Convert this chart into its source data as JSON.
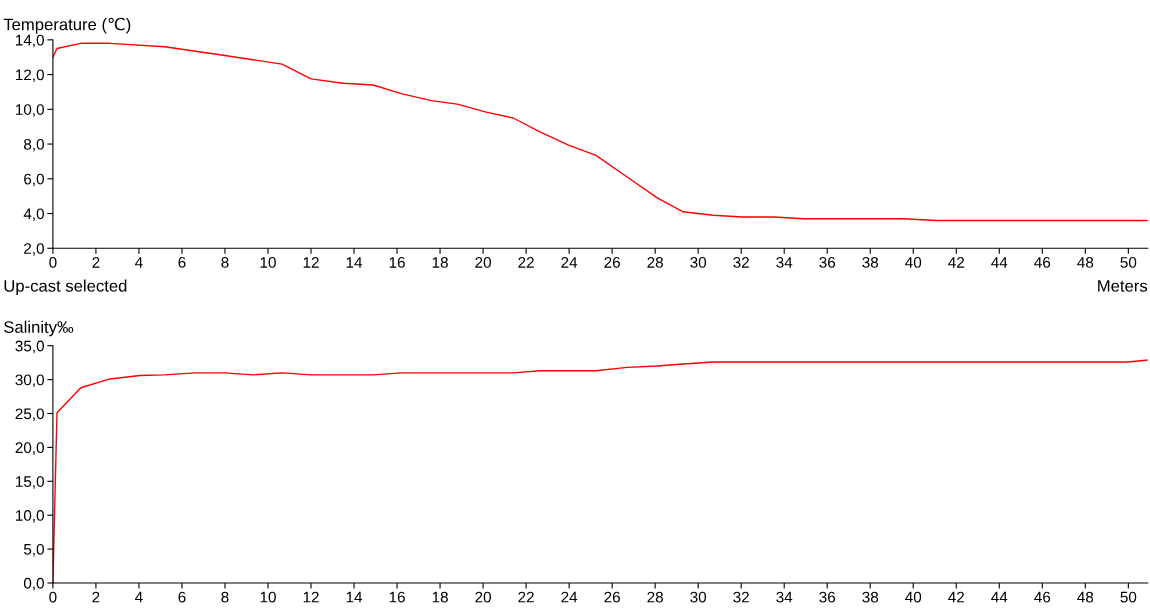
{
  "chart_data": [
    {
      "type": "line",
      "ylabel": "Temperature (℃)",
      "xlabel": "Meters",
      "annotations": [
        "Up-cast selected"
      ],
      "series": [
        {
          "color": "#ff0000",
          "x": [
            0,
            0.19,
            1.3,
            2.65,
            5.2,
            8.0,
            10.65,
            12.0,
            13.5,
            14.9,
            16.2,
            17.6,
            18.8,
            20.1,
            21.4,
            22.65,
            23.95,
            25.25,
            26.7,
            28.1,
            29.3,
            30.7,
            32.05,
            33.5,
            34.9,
            36.2,
            39.5,
            41.1,
            50.9
          ],
          "values": [
            13.0,
            13.5,
            13.8,
            13.8,
            13.6,
            13.1,
            12.6,
            11.75,
            11.5,
            11.4,
            10.9,
            10.5,
            10.3,
            9.85,
            9.5,
            8.7,
            7.95,
            7.35,
            6.1,
            4.9,
            4.1,
            3.9,
            3.8,
            3.8,
            3.7,
            3.7,
            3.7,
            3.6,
            3.6
          ]
        }
      ],
      "xlim": [
        0,
        50.9
      ],
      "ylim": [
        2,
        14
      ],
      "xticks": [
        0,
        2,
        4,
        6,
        8,
        10,
        12,
        14,
        16,
        18,
        20,
        22,
        24,
        26,
        28,
        30,
        32,
        34,
        36,
        38,
        40,
        42,
        44,
        46,
        48,
        50
      ],
      "yticks": [
        {
          "value": 2,
          "label": "2,0"
        },
        {
          "value": 4,
          "label": "4,0"
        },
        {
          "value": 6,
          "label": "6,0"
        },
        {
          "value": 8,
          "label": "8,0"
        },
        {
          "value": 10,
          "label": "10,0"
        },
        {
          "value": 12,
          "label": "12,0"
        },
        {
          "value": 14,
          "label": "14,0"
        }
      ],
      "grid": false,
      "legend": false
    },
    {
      "type": "line",
      "ylabel": "Salinity‰",
      "series": [
        {
          "color": "#ff0000",
          "x": [
            0,
            0.19,
            1.3,
            2.65,
            4.05,
            5.2,
            6.6,
            8.0,
            9.3,
            10.65,
            12.0,
            14.9,
            16.2,
            21.4,
            22.65,
            25.25,
            26.7,
            28.1,
            29.3,
            30.7,
            50.0,
            50.9
          ],
          "values": [
            0.0,
            25.1,
            28.8,
            30.1,
            30.6,
            30.7,
            31.0,
            31.0,
            30.7,
            31.0,
            30.7,
            30.7,
            31.0,
            31.0,
            31.3,
            31.3,
            31.8,
            32.0,
            32.3,
            32.6,
            32.6,
            32.9
          ]
        }
      ],
      "xlim": [
        0,
        50.9
      ],
      "ylim": [
        0,
        35
      ],
      "xticks": [
        0,
        2,
        4,
        6,
        8,
        10,
        12,
        14,
        16,
        18,
        20,
        22,
        24,
        26,
        28,
        30,
        32,
        34,
        36,
        38,
        40,
        42,
        44,
        46,
        48,
        50
      ],
      "yticks": [
        {
          "value": 0,
          "label": "0,0"
        },
        {
          "value": 5,
          "label": "5,0"
        },
        {
          "value": 10,
          "label": "10,0"
        },
        {
          "value": 15,
          "label": "15,0"
        },
        {
          "value": 20,
          "label": "20,0"
        },
        {
          "value": 25,
          "label": "25,0"
        },
        {
          "value": 30,
          "label": "30,0"
        },
        {
          "value": 35,
          "label": "35,0"
        }
      ],
      "grid": false,
      "legend": false
    }
  ]
}
